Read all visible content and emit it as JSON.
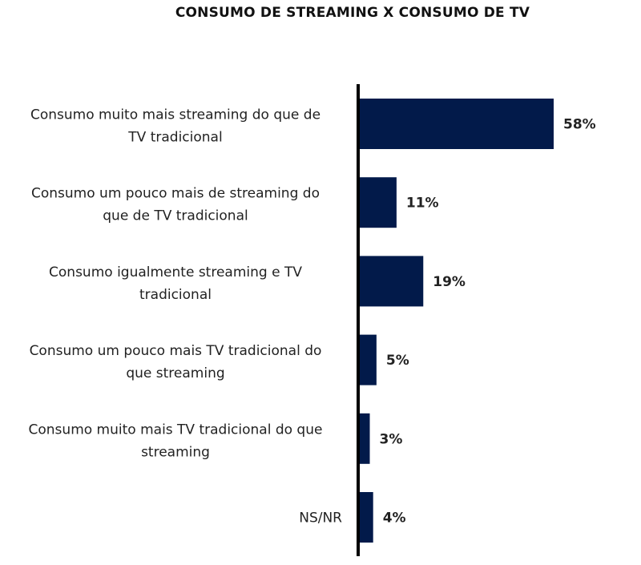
{
  "chart_data": {
    "type": "bar",
    "orientation": "horizontal",
    "title": "CONSUMO DE STREAMING X CONSUMO DE TV",
    "categories": [
      [
        "Consumo muito mais streaming do que de",
        "TV tradicional"
      ],
      [
        "Consumo um pouco mais de streaming do",
        "que de TV tradicional"
      ],
      [
        "Consumo igualmente streaming e TV",
        "tradicional"
      ],
      [
        "Consumo um pouco mais TV tradicional do",
        "que streaming"
      ],
      [
        "Consumo muito mais TV tradicional do que",
        "streaming"
      ],
      [
        "NS/NR"
      ]
    ],
    "values": [
      58,
      11,
      19,
      5,
      3,
      4
    ],
    "value_labels": [
      "58%",
      "11%",
      "19%",
      "5%",
      "3%",
      "4%"
    ],
    "xlabel": "",
    "ylabel": "",
    "xlim": [
      0,
      60
    ],
    "grid": false,
    "bar_color": "#021a4a"
  }
}
